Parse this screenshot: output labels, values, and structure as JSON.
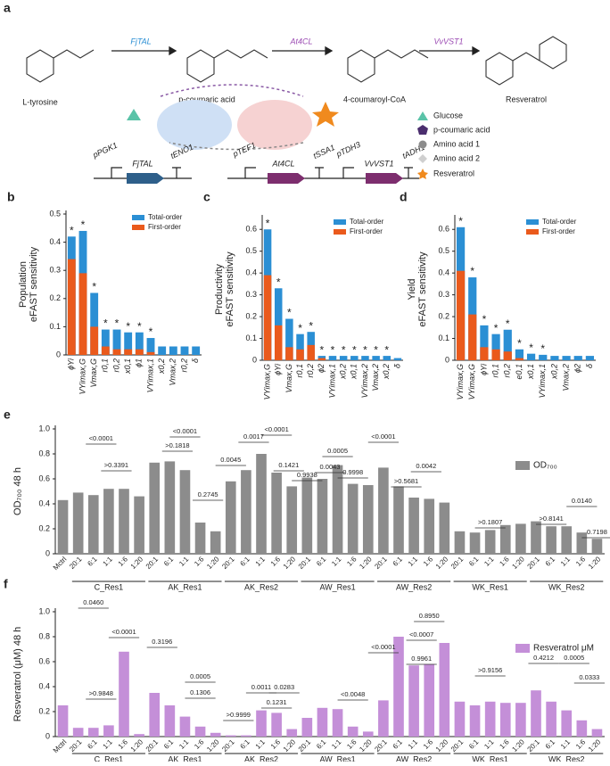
{
  "pathway": {
    "panel": "a",
    "compounds": [
      "L-tyrosine",
      "p-coumaric acid",
      "4-coumaroyl-CoA",
      "Resveratrol"
    ],
    "enzymes": [
      "FjTAL",
      "At4CL",
      "VvVST1"
    ],
    "legend": [
      "Glucose",
      "p-coumaric acid",
      "Amino acid 1",
      "Amino acid 2",
      "Resveratrol"
    ],
    "parts": [
      "pPGK1",
      "FjTAL",
      "tENO1",
      "pTEF1",
      "At4CL",
      "tSSA1",
      "pTDH3",
      "VvVST1",
      "tADH1"
    ]
  },
  "chart_data": [
    {
      "type": "bar",
      "panel": "b",
      "ylabel": [
        "Population",
        "eFAST sensitivity"
      ],
      "barmode": "overlay",
      "categories": [
        "ϕYi",
        "VYimax,G",
        "Vmax,G",
        "r0,1",
        "r0,2",
        "x0,1",
        "ϕ1",
        "VYimax,1",
        "x0,2",
        "Vmax,2",
        "r0,2",
        "δ"
      ],
      "series": [
        {
          "name": "Total-order",
          "color": "#2b8fd4",
          "values": [
            0.42,
            0.44,
            0.22,
            0.09,
            0.09,
            0.08,
            0.08,
            0.06,
            0.03,
            0.03,
            0.03,
            0.03
          ]
        },
        {
          "name": "First-order",
          "color": "#ea5a1c",
          "values": [
            0.34,
            0.29,
            0.1,
            0.03,
            0.02,
            0.02,
            0.02,
            0.01,
            0.0,
            0.0,
            0.0,
            0.0
          ]
        }
      ],
      "significance": [
        "*",
        "*",
        "*",
        "*",
        "*",
        "*",
        "*",
        "*",
        null,
        null,
        null,
        null
      ],
      "ylim": [
        0,
        0.5
      ],
      "yticks": [
        0,
        0.1,
        0.2,
        0.3,
        0.4,
        0.5
      ]
    },
    {
      "type": "bar",
      "panel": "c",
      "ylabel": [
        "Productivity",
        "eFAST sensitivity"
      ],
      "barmode": "overlay",
      "categories": [
        "VYimax,G",
        "ϕYi",
        "Vmax,G",
        "r0,1",
        "r0,2",
        "ϕ2",
        "VYimax,1",
        "x0,2",
        "x0,1",
        "VYimax,2",
        "Vmax,2",
        "x0,2",
        "δ"
      ],
      "series": [
        {
          "name": "Total-order",
          "color": "#2b8fd4",
          "values": [
            0.6,
            0.33,
            0.19,
            0.12,
            0.13,
            0.02,
            0.02,
            0.02,
            0.02,
            0.02,
            0.02,
            0.02,
            0.01
          ]
        },
        {
          "name": "First-order",
          "color": "#ea5a1c",
          "values": [
            0.39,
            0.16,
            0.06,
            0.05,
            0.07,
            0.01,
            0.0,
            0.0,
            0.0,
            0.0,
            0.0,
            0.0,
            0.0
          ]
        }
      ],
      "significance": [
        "*",
        "*",
        "*",
        "*",
        "*",
        "*",
        "*",
        "*",
        "*",
        "*",
        "*",
        "*",
        null
      ],
      "ylim": [
        0,
        0.65
      ],
      "yticks": [
        0,
        0.1,
        0.2,
        0.3,
        0.4,
        0.5,
        0.6
      ]
    },
    {
      "type": "bar",
      "panel": "d",
      "ylabel": [
        "Yield",
        "eFAST sensitivity"
      ],
      "barmode": "overlay",
      "categories": [
        "VYimax,G",
        "VYimax,G",
        "ϕYi",
        "r0,1",
        "r0,2",
        "e0,1",
        "x0,1",
        "VYimax,1",
        "x0,2",
        "Vmax,2",
        "ϕ2",
        "δ"
      ],
      "series": [
        {
          "name": "Total-order",
          "color": "#2b8fd4",
          "values": [
            0.61,
            0.38,
            0.16,
            0.12,
            0.14,
            0.05,
            0.03,
            0.025,
            0.02,
            0.02,
            0.02,
            0.02
          ]
        },
        {
          "name": "First-order",
          "color": "#ea5a1c",
          "values": [
            0.41,
            0.21,
            0.06,
            0.05,
            0.04,
            0.01,
            0.0,
            0.0,
            0.0,
            0.0,
            0.0,
            0.0
          ]
        }
      ],
      "significance": [
        "*",
        "*",
        "*",
        "*",
        "*",
        "*",
        "*",
        "*",
        null,
        null,
        null,
        null
      ],
      "ylim": [
        0,
        0.65
      ],
      "yticks": [
        0,
        0.1,
        0.2,
        0.3,
        0.4,
        0.5,
        0.6
      ]
    },
    {
      "type": "bar",
      "panel": "e",
      "ylabel": "OD₇₀₀ 48 h",
      "legend_name": "OD₇₀₀",
      "color": "#8c8c8c",
      "categories": [
        "Mctrl",
        "20:1",
        "6:1",
        "1:1",
        "1:6",
        "1:20",
        "20:1",
        "6:1",
        "1:1",
        "1:6",
        "1:20",
        "20:1",
        "6:1",
        "1:1",
        "1:6",
        "1:20",
        "20:1",
        "6:1",
        "1:1",
        "1:6",
        "1:20",
        "20:1",
        "6:1",
        "1:1",
        "1:6",
        "1:20",
        "20:1",
        "6:1",
        "1:1",
        "1:6",
        "1:20",
        "20:1",
        "6:1",
        "1:1",
        "1:6",
        "1:20"
      ],
      "groups": [
        "C_Res1",
        "AK_Res1",
        "AK_Res2",
        "AW_Res1",
        "AW_Res2",
        "WK_Res1",
        "WK_Res2"
      ],
      "values": [
        0.43,
        0.49,
        0.47,
        0.52,
        0.52,
        0.46,
        0.73,
        0.74,
        0.67,
        0.25,
        0.18,
        0.58,
        0.67,
        0.8,
        0.65,
        0.54,
        0.61,
        0.6,
        0.71,
        0.56,
        0.55,
        0.69,
        0.54,
        0.45,
        0.44,
        0.41,
        0.18,
        0.17,
        0.19,
        0.23,
        0.24,
        0.26,
        0.22,
        0.22,
        0.17,
        0.12
      ],
      "pvalues": [
        "<0.0001",
        ">0.3391",
        "<0.0001",
        ">0.1818",
        "0.2745",
        "0.0045",
        "0.0017",
        "<0.0001",
        "0.1421",
        "0.9938",
        "0.0043",
        "0.0005",
        "0.9998",
        "<0.0001",
        ">0.5681",
        "0.0042",
        ">0.1807",
        ">0.8141",
        "0.0140",
        "0.7198"
      ],
      "ylim": [
        0,
        1
      ],
      "yticks": [
        0,
        0.2,
        0.4,
        0.6,
        0.8,
        {
          "value": 1,
          "label": "1.0"
        }
      ]
    },
    {
      "type": "bar",
      "panel": "f",
      "ylabel": "Resveratrol (μM) 48 h",
      "legend_name": "Resveratrol μM",
      "color": "#c48fd8",
      "categories": [
        "Mctrl",
        "20:1",
        "6:1",
        "1:1",
        "1:6",
        "1:20",
        "20:1",
        "6:1",
        "1:1",
        "1:6",
        "1:20",
        "20:1",
        "6:1",
        "1:1",
        "1:6",
        "1:20",
        "20:1",
        "6:1",
        "1:1",
        "1:6",
        "1:20",
        "20:1",
        "6:1",
        "1:1",
        "1:6",
        "1:20",
        "20:1",
        "6:1",
        "1:1",
        "1:6",
        "1:20",
        "20:1",
        "6:1",
        "1:1",
        "1:6",
        "1:20"
      ],
      "groups": [
        "C_Res1",
        "AK_Res1",
        "AK_Res2",
        "AW_Res1",
        "AW_Res2",
        "WK_Res1",
        "WK_Res2"
      ],
      "values": [
        0.25,
        0.07,
        0.07,
        0.09,
        0.68,
        0.02,
        0.35,
        0.25,
        0.16,
        0.08,
        0.03,
        0.01,
        0.01,
        0.21,
        0.19,
        0.06,
        0.15,
        0.23,
        0.22,
        0.08,
        0.04,
        0.29,
        0.8,
        0.57,
        0.58,
        0.75,
        0.28,
        0.25,
        0.28,
        0.27,
        0.27,
        0.37,
        0.28,
        0.21,
        0.13,
        0.06
      ],
      "pvalues": [
        "0.0460",
        "<0.0001",
        ">0.9848",
        "0.3196",
        "0.0005",
        "0.1306",
        ">0.9999",
        "0.0011",
        "0.0283",
        "0.1231",
        "<0.0048",
        "<0.0001",
        "0.8950",
        "<0.0007",
        "0.9961",
        ">0.9156",
        "0.4212",
        "0.0005",
        "0.0333"
      ],
      "ylim": [
        0,
        1
      ],
      "yticks": [
        0,
        0.2,
        0.4,
        0.6,
        0.8,
        {
          "value": 1,
          "label": "1.0"
        }
      ]
    }
  ]
}
